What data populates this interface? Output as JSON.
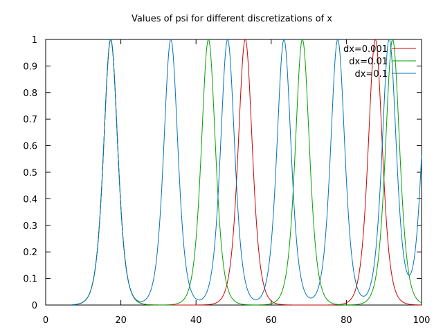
{
  "chart_data": {
    "type": "line",
    "title": "Values of psi for different discretizations of x",
    "xlabel": "",
    "ylabel": "",
    "xlim": [
      0,
      100
    ],
    "ylim": [
      0,
      1
    ],
    "x_ticks": [
      "0",
      "20",
      "40",
      "60",
      "80",
      "100"
    ],
    "y_ticks": [
      "0",
      "0.1",
      "0.2",
      "0.3",
      "0.4",
      "0.5",
      "0.6",
      "0.7",
      "0.8",
      "0.9",
      "1"
    ],
    "grid": false,
    "legend_position": "top-right",
    "peak_width": 2.5,
    "series": [
      {
        "name": "dx=0.001",
        "color": "#cc0000",
        "peaks": [
          17.3,
          53.1,
          87.7
        ],
        "x_start": 7,
        "x_end": 100
      },
      {
        "name": "dx=0.01",
        "color": "#00a000",
        "peaks": [
          17.3,
          43.3,
          68.3,
          92.3
        ],
        "x_start": 7,
        "x_end": 100
      },
      {
        "name": "dx=0.1",
        "color": "#0072bd",
        "peaks": [
          17.3,
          33.3,
          48.4,
          63.4,
          77.7,
          91.4,
          102.0
        ],
        "x_start": 7,
        "x_end": 100
      }
    ]
  }
}
